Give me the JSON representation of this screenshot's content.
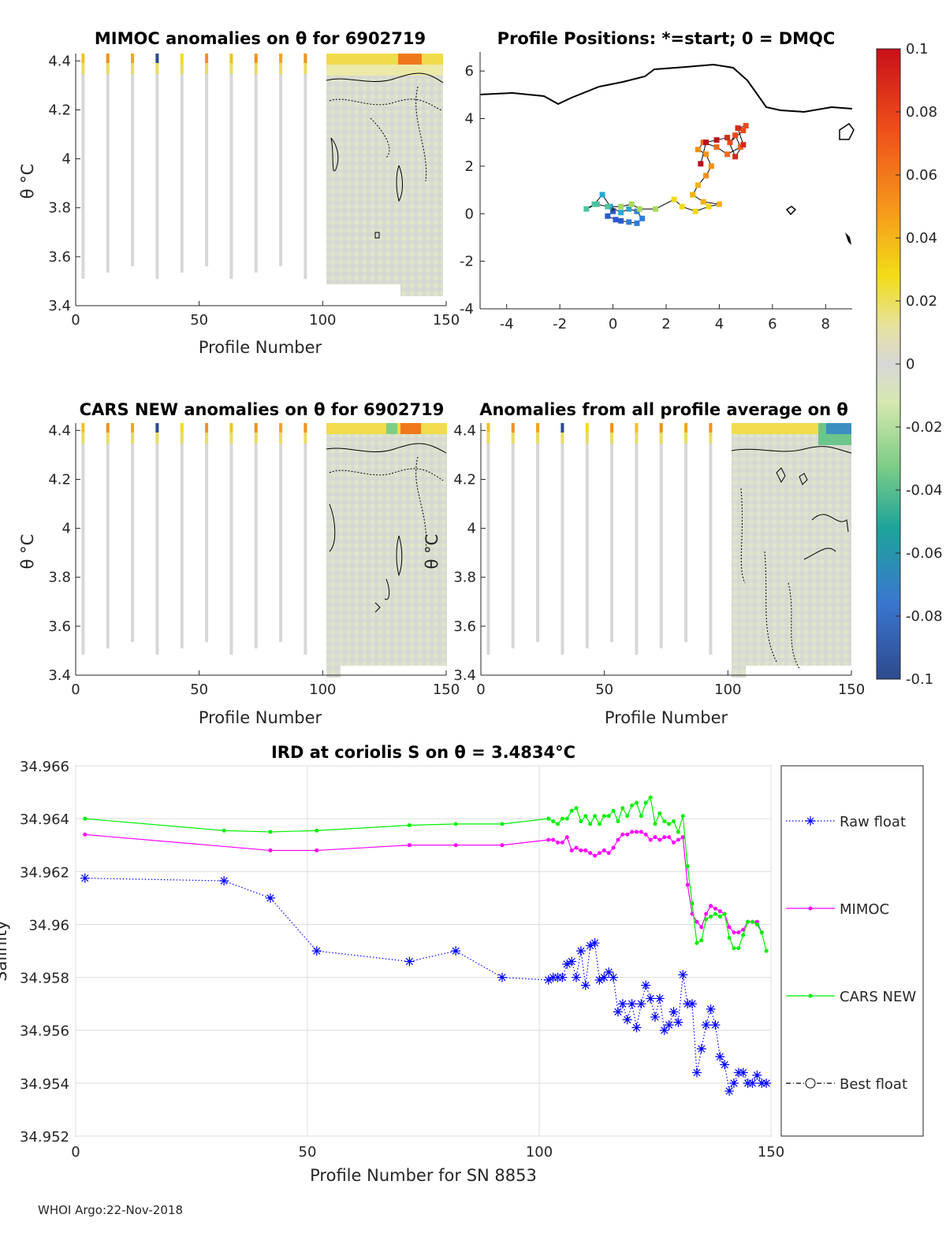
{
  "footer": "WHOI Argo:22-Nov-2018",
  "colors": {
    "raw": "#0000ff",
    "mimoc": "#ff00ff",
    "cars": "#00ee00",
    "best": "#000000",
    "neutral": "#d7d7d7",
    "contour": "#000000"
  },
  "colorbar": {
    "ticks": [
      "0.1",
      "0.08",
      "0.06",
      "0.04",
      "0.02",
      "0",
      "-0.02",
      "-0.04",
      "-0.06",
      "-0.08",
      "-0.1"
    ],
    "stops": [
      "#c8101a",
      "#ef4a1a",
      "#f6951c",
      "#f2dc18",
      "#d7d7d7",
      "#d7e8b0",
      "#7fce86",
      "#1ea39a",
      "#3a76cf",
      "#2d4a8c"
    ]
  },
  "panels": {
    "mimoc": {
      "title": "MIMOC anomalies on θ  for 6902719",
      "xlabel": "Profile Number",
      "ylabel": "θ °C"
    },
    "positions": {
      "title": "Profile Positions: *=start; 0 = DMQC"
    },
    "cars": {
      "title": "CARS NEW anomalies on θ for 6902719",
      "xlabel": "Profile Number",
      "ylabel": "θ °C"
    },
    "allavg": {
      "title": "Anomalies from all profile average on θ",
      "xlabel": "Profile Number"
    }
  },
  "section_axes": {
    "x_ticks": [
      "0",
      "50",
      "100",
      "150"
    ],
    "y_ticks": [
      "4.4",
      "4.2",
      "4",
      "3.8",
      "3.6",
      "3.4"
    ],
    "xlim": [
      0,
      150
    ],
    "ylim": [
      3.4,
      4.43
    ],
    "sparse_profiles": [
      3,
      13,
      23,
      33,
      43,
      53,
      63,
      73,
      83,
      93
    ]
  },
  "map_axes": {
    "x_ticks": [
      "-4",
      "-2",
      "0",
      "2",
      "4",
      "6",
      "8"
    ],
    "y_ticks": [
      "6",
      "4",
      "2",
      "0",
      "-2",
      "-4"
    ],
    "xlim": [
      -5,
      9
    ],
    "ylim": [
      -4,
      6.8
    ],
    "track": [
      [
        0,
        0.1
      ],
      [
        -0.2,
        -0.1
      ],
      [
        0.1,
        -0.25
      ],
      [
        0.3,
        -0.3
      ],
      [
        0.6,
        -0.35
      ],
      [
        0.9,
        -0.4
      ],
      [
        1.1,
        -0.2
      ],
      [
        0.9,
        0.1
      ],
      [
        0.6,
        0.2
      ],
      [
        0.3,
        0.05
      ],
      [
        -0.1,
        0.3
      ],
      [
        -0.4,
        0.8
      ],
      [
        -0.7,
        0.4
      ],
      [
        -1,
        0.2
      ],
      [
        -0.6,
        0.4
      ],
      [
        -0.2,
        0.3
      ],
      [
        0.3,
        0.3
      ],
      [
        0.7,
        0.4
      ],
      [
        1.0,
        0.2
      ],
      [
        1.6,
        0.2
      ],
      [
        2.3,
        0.6
      ],
      [
        2.6,
        0.3
      ],
      [
        3.1,
        0.1
      ],
      [
        3.6,
        0.3
      ],
      [
        4.0,
        0.4
      ],
      [
        3.4,
        0.5
      ],
      [
        3.0,
        0.8
      ],
      [
        3.2,
        1.2
      ],
      [
        3.5,
        1.6
      ],
      [
        3.7,
        2.0
      ],
      [
        3.5,
        2.5
      ],
      [
        3.2,
        2.7
      ],
      [
        3.4,
        3.0
      ],
      [
        3.9,
        2.8
      ],
      [
        4.3,
        2.5
      ],
      [
        4.8,
        2.8
      ],
      [
        4.6,
        3.3
      ],
      [
        4.4,
        3.0
      ],
      [
        4.9,
        3.5
      ],
      [
        5.0,
        3.7
      ],
      [
        4.7,
        3.6
      ],
      [
        4.9,
        2.9
      ],
      [
        4.6,
        2.4
      ],
      [
        4.3,
        3.2
      ],
      [
        3.9,
        3.1
      ],
      [
        3.5,
        3.0
      ],
      [
        3.3,
        2.1
      ]
    ]
  },
  "chart_data": {
    "type": "line",
    "title": "IRD at coriolis S on θ = 3.4834°C",
    "xlabel": "Profile Number for SN 8853",
    "ylabel": "Salinity",
    "xlim": [
      0,
      150
    ],
    "ylim": [
      34.952,
      34.966
    ],
    "x_ticks": [
      "0",
      "50",
      "100",
      "150"
    ],
    "y_ticks": [
      "34.966",
      "34.964",
      "34.962",
      "34.96",
      "34.958",
      "34.956",
      "34.954",
      "34.952"
    ],
    "legend_position": "right-outside",
    "series": [
      {
        "name": "Raw float",
        "style": "dotted-star",
        "x": [
          2,
          32,
          42,
          52,
          72,
          82,
          92,
          102,
          103,
          104,
          105,
          106,
          107,
          108,
          109,
          110,
          111,
          112,
          113,
          114,
          115,
          116,
          117,
          118,
          119,
          120,
          121,
          122,
          123,
          124,
          125,
          126,
          127,
          128,
          129,
          130,
          131,
          132,
          133,
          134,
          135,
          136,
          137,
          138,
          139,
          140,
          141,
          142,
          143,
          144,
          145,
          146,
          147,
          148,
          149
        ],
        "values": [
          34.96175,
          34.96165,
          34.961,
          34.959,
          34.9586,
          34.959,
          34.958,
          34.9579,
          34.958,
          34.958,
          34.958,
          34.9585,
          34.9586,
          34.958,
          34.959,
          34.9577,
          34.9592,
          34.9593,
          34.9579,
          34.958,
          34.9582,
          34.958,
          34.9567,
          34.957,
          34.9564,
          34.957,
          34.9561,
          34.957,
          34.9577,
          34.9572,
          34.9565,
          34.9572,
          34.956,
          34.9562,
          34.9567,
          34.9563,
          34.9581,
          34.957,
          34.957,
          34.9544,
          34.9553,
          34.9562,
          34.9568,
          34.9562,
          34.955,
          34.9547,
          34.9537,
          34.954,
          34.9544,
          34.9544,
          34.954,
          34.954,
          34.9543,
          34.954,
          34.954
        ]
      },
      {
        "name": "MIMOC",
        "style": "solid-dot",
        "x": [
          2,
          42,
          52,
          72,
          82,
          92,
          102,
          103,
          104,
          105,
          106,
          107,
          108,
          109,
          110,
          111,
          112,
          113,
          114,
          115,
          116,
          117,
          118,
          119,
          120,
          121,
          122,
          123,
          124,
          125,
          126,
          127,
          128,
          129,
          130,
          131,
          132,
          133,
          134,
          135,
          136,
          137,
          138,
          139,
          140,
          141,
          142,
          143,
          144,
          145,
          146,
          147,
          148
        ],
        "values": [
          34.9634,
          34.9628,
          34.9628,
          34.963,
          34.963,
          34.963,
          34.9632,
          34.9632,
          34.9631,
          34.9631,
          34.9633,
          34.9628,
          34.9629,
          34.9628,
          34.9628,
          34.9627,
          34.9626,
          34.9627,
          34.9628,
          34.9627,
          34.9629,
          34.9632,
          34.9634,
          34.9634,
          34.9635,
          34.9635,
          34.9635,
          34.9634,
          34.9632,
          34.9633,
          34.9632,
          34.9633,
          34.9633,
          34.9631,
          34.9632,
          34.9633,
          34.9615,
          34.9604,
          34.9601,
          34.9599,
          34.9604,
          34.9607,
          34.9606,
          34.9605,
          34.9604,
          34.9599,
          34.9597,
          34.9597,
          34.9598,
          34.9601,
          34.9601,
          34.9601,
          34.9597
        ]
      },
      {
        "name": "CARS NEW",
        "style": "solid-dot",
        "x": [
          2,
          32,
          42,
          52,
          72,
          82,
          92,
          102,
          103,
          104,
          105,
          106,
          107,
          108,
          109,
          110,
          111,
          112,
          113,
          114,
          115,
          116,
          117,
          118,
          119,
          120,
          121,
          122,
          123,
          124,
          125,
          126,
          127,
          128,
          129,
          130,
          131,
          132,
          133,
          134,
          135,
          136,
          137,
          138,
          139,
          140,
          141,
          142,
          143,
          144,
          145,
          146,
          147,
          148,
          149
        ],
        "values": [
          34.964,
          34.96355,
          34.9635,
          34.96355,
          34.96375,
          34.9638,
          34.9638,
          34.964,
          34.9639,
          34.9638,
          34.964,
          34.964,
          34.9643,
          34.9644,
          34.9639,
          34.9641,
          34.9638,
          34.9641,
          34.9638,
          34.9641,
          34.9641,
          34.9643,
          34.9639,
          34.9644,
          34.9641,
          34.9645,
          34.9646,
          34.9641,
          34.9646,
          34.9648,
          34.9638,
          34.9642,
          34.9639,
          34.9638,
          34.9639,
          34.9635,
          34.9641,
          34.9622,
          34.9608,
          34.9593,
          34.9594,
          34.9602,
          34.9603,
          34.9604,
          34.9603,
          34.9604,
          34.9595,
          34.9591,
          34.9591,
          34.9596,
          34.9601,
          34.9601,
          34.96,
          34.9597,
          34.959
        ]
      },
      {
        "name": "Best float",
        "style": "dashdot-circle",
        "x": [],
        "values": []
      }
    ]
  }
}
